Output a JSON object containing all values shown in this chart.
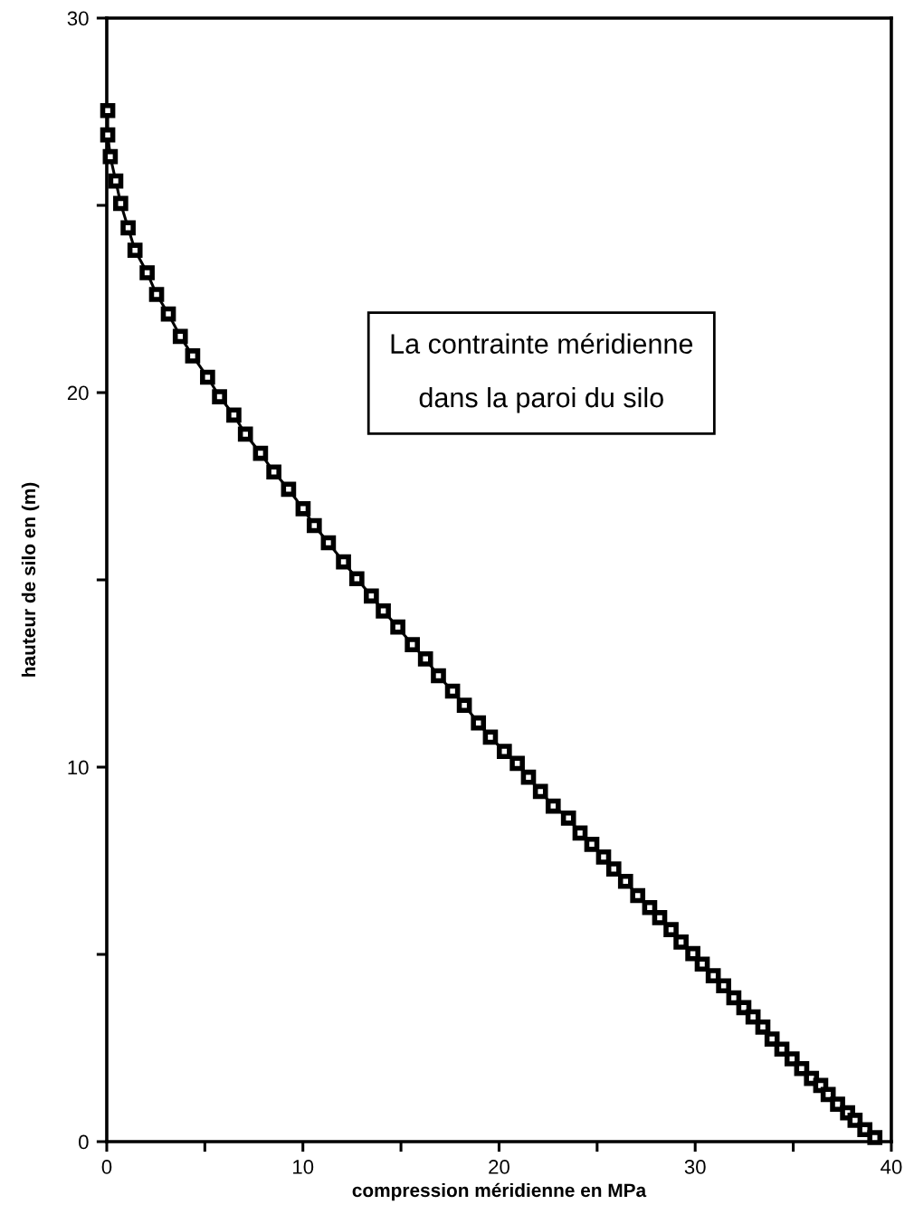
{
  "chart_data": {
    "type": "line",
    "xlabel": "compression méridienne en MPa",
    "ylabel": "hauteur de silo en (m)",
    "annotations": [
      "La contrainte méridienne\ndans la paroi du silo"
    ],
    "x": [
      0.05,
      0.05,
      0.18,
      0.46,
      0.71,
      1.09,
      1.44,
      2.06,
      2.54,
      3.14,
      3.75,
      4.38,
      5.14,
      5.75,
      6.48,
      7.07,
      7.84,
      8.52,
      9.27,
      10.01,
      10.58,
      11.3,
      12.07,
      12.75,
      13.49,
      14.1,
      14.84,
      15.58,
      16.25,
      16.91,
      17.63,
      18.23,
      18.95,
      19.56,
      20.27,
      20.93,
      21.5,
      22.11,
      22.76,
      23.54,
      24.13,
      24.73,
      25.33,
      25.85,
      26.45,
      27.07,
      27.68,
      28.19,
      28.77,
      29.28,
      29.88,
      30.36,
      30.92,
      31.45,
      31.97,
      32.48,
      32.95,
      33.45,
      33.92,
      34.42,
      34.94,
      35.43,
      35.93,
      36.4,
      36.78,
      37.26,
      37.77,
      38.15,
      38.65,
      39.16
    ],
    "values": [
      27.53,
      26.88,
      26.3,
      25.65,
      25.05,
      24.4,
      23.8,
      23.2,
      22.62,
      22.1,
      21.5,
      20.98,
      20.41,
      19.89,
      19.4,
      18.89,
      18.38,
      17.88,
      17.42,
      16.9,
      16.45,
      15.99,
      15.48,
      15.03,
      14.57,
      14.17,
      13.74,
      13.27,
      12.89,
      12.44,
      12.03,
      11.65,
      11.18,
      10.8,
      10.42,
      10.1,
      9.73,
      9.35,
      8.96,
      8.64,
      8.24,
      7.94,
      7.6,
      7.28,
      6.95,
      6.57,
      6.25,
      5.98,
      5.66,
      5.33,
      5.02,
      4.74,
      4.43,
      4.16,
      3.84,
      3.58,
      3.33,
      3.06,
      2.74,
      2.47,
      2.21,
      1.95,
      1.69,
      1.5,
      1.26,
      1.0,
      0.77,
      0.57,
      0.32,
      0.11
    ],
    "color": "#000000",
    "marker": "square",
    "line_style": "solid",
    "xlim": [
      0,
      40
    ],
    "xticks": [
      0,
      {
        "value": 5,
        "label": null
      },
      10,
      {
        "value": 15,
        "label": null
      },
      20,
      {
        "value": 25,
        "label": null
      },
      30,
      {
        "value": 35,
        "label": null
      },
      40
    ],
    "ylim": [
      0,
      30
    ],
    "yticks": [
      0,
      {
        "value": 5,
        "label": null
      },
      10,
      {
        "value": 15,
        "label": null
      },
      20,
      {
        "value": 25,
        "label": null
      },
      30
    ]
  }
}
